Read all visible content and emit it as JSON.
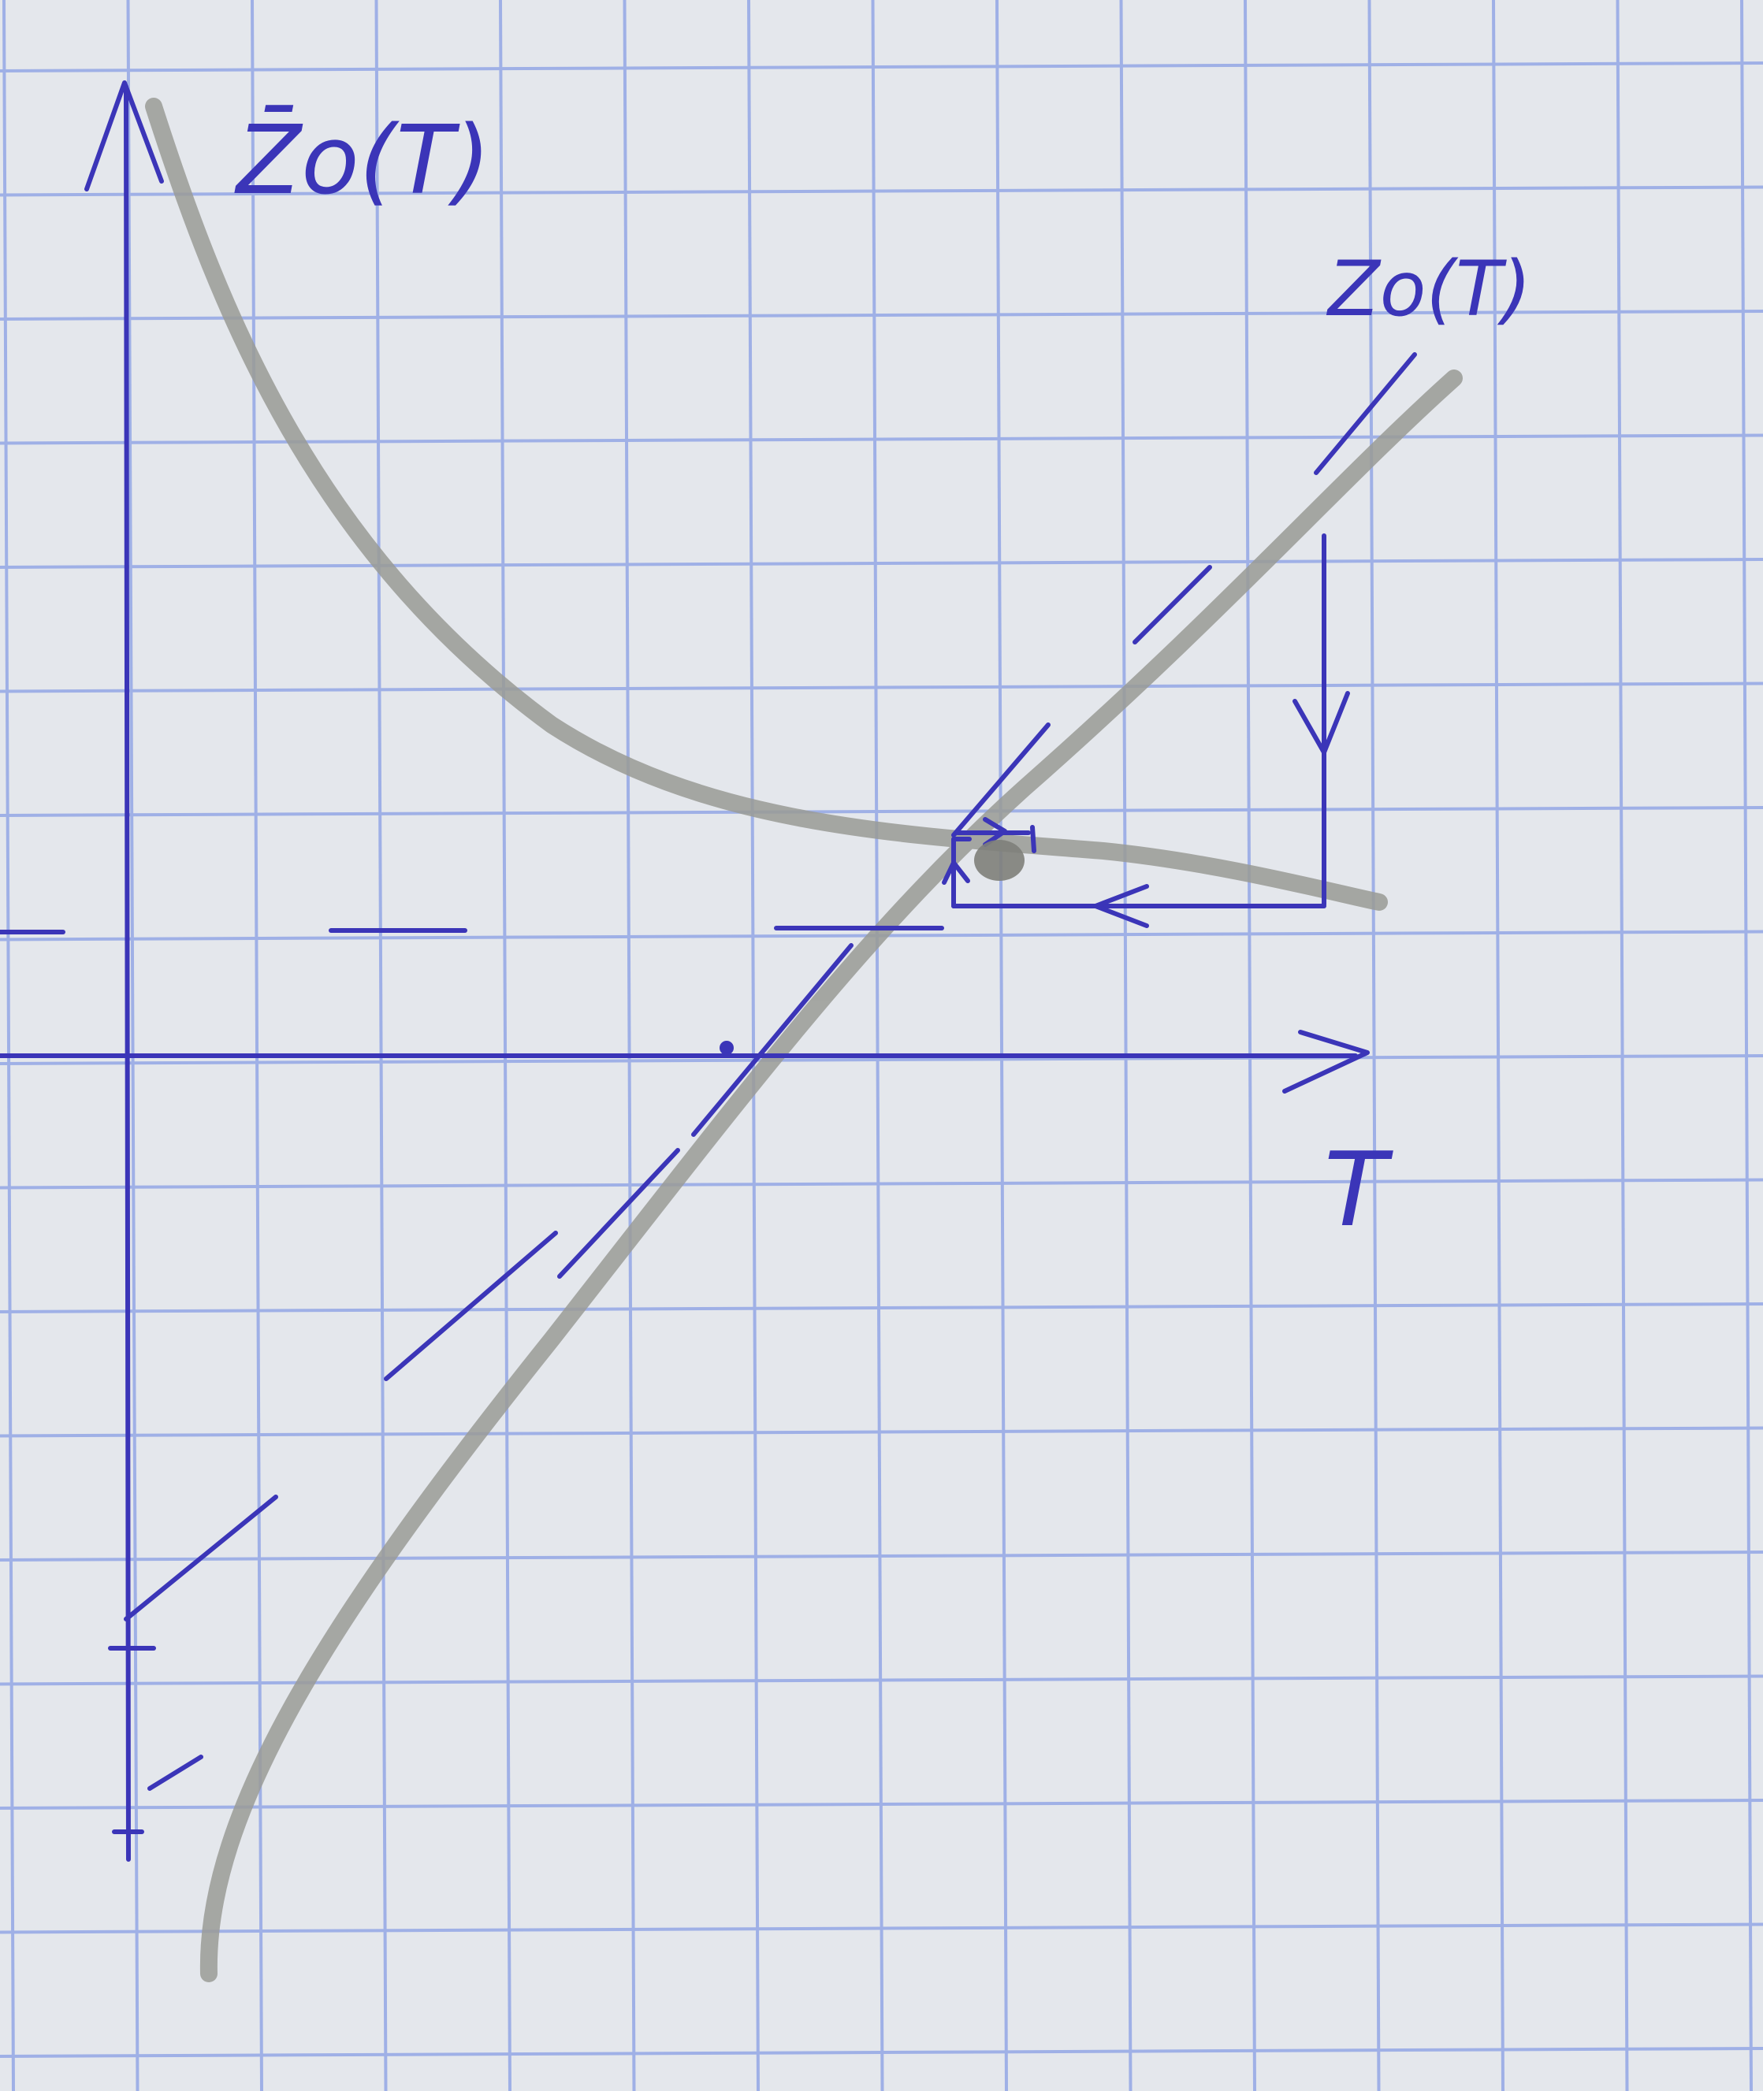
{
  "labels": {
    "y_axis": "Z̄o(T)",
    "curve": "Zo(T)",
    "x_axis": "T"
  },
  "colors": {
    "paper": "#e4e7ec",
    "grid": "#9fb0e6",
    "ink": "#3b35b8",
    "pencil": "#9a9b96"
  }
}
